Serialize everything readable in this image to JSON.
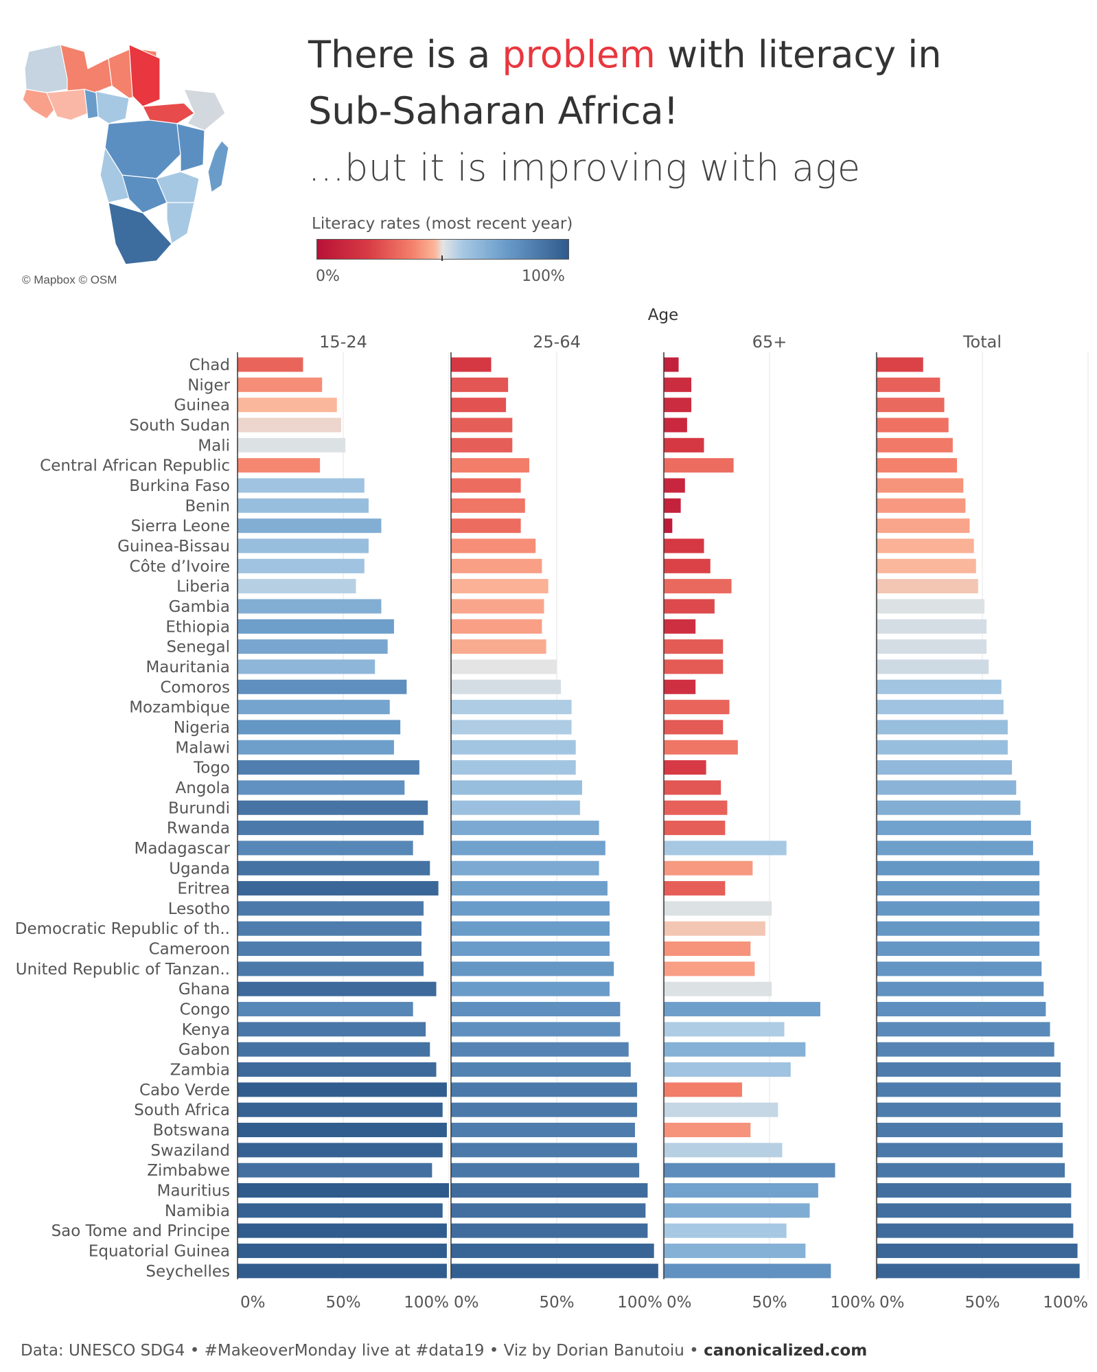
{
  "title": {
    "line1_a": "There is a ",
    "line1_highlight": "problem",
    "line1_b": " with literacy in",
    "line2": "Sub-Saharan Africa!",
    "line3": "...but it is improving with age"
  },
  "legend": {
    "title": "Literacy rates (most recent year)",
    "min": "0%",
    "max": "100%"
  },
  "map_credit": "© Mapbox © OSM",
  "footer": {
    "text": "Data: UNESCO SDG4 • #MakeoverMonday live at #data19 • Viz by Dorian Banutoiu • ",
    "site": "canonicalized.com"
  },
  "chart_data": {
    "type": "bar",
    "orientation": "horizontal",
    "column_header": "Age",
    "xlim": [
      0,
      100
    ],
    "x_ticks": [
      "0%",
      "50%",
      "100%"
    ],
    "categories": [
      "Chad",
      "Niger",
      "Guinea",
      "South Sudan",
      "Mali",
      "Central African Republic",
      "Burkina Faso",
      "Benin",
      "Sierra Leone",
      "Guinea-Bissau",
      "Côte d’Ivoire",
      "Liberia",
      "Gambia",
      "Ethiopia",
      "Senegal",
      "Mauritania",
      "Comoros",
      "Mozambique",
      "Nigeria",
      "Malawi",
      "Togo",
      "Angola",
      "Burundi",
      "Rwanda",
      "Madagascar",
      "Uganda",
      "Eritrea",
      "Lesotho",
      "Democratic Republic of th..",
      "Cameroon",
      "United Republic of Tanzan..",
      "Ghana",
      "Congo",
      "Kenya",
      "Gabon",
      "Zambia",
      "Cabo Verde",
      "South Africa",
      "Botswana",
      "Swaziland",
      "Zimbabwe",
      "Mauritius",
      "Namibia",
      "Sao Tome and Principe",
      "Equatorial Guinea",
      "Seychelles"
    ],
    "series": [
      {
        "name": "15-24",
        "values": [
          31,
          40,
          47,
          49,
          51,
          39,
          60,
          62,
          68,
          62,
          60,
          56,
          68,
          74,
          71,
          65,
          80,
          72,
          77,
          74,
          86,
          79,
          90,
          88,
          83,
          91,
          95,
          88,
          87,
          87,
          88,
          94,
          83,
          89,
          91,
          94,
          99,
          97,
          99,
          97,
          92,
          100,
          97,
          99,
          99,
          99
        ]
      },
      {
        "name": "25-64",
        "values": [
          19,
          27,
          26,
          29,
          29,
          37,
          33,
          35,
          33,
          40,
          43,
          46,
          44,
          43,
          45,
          50,
          52,
          57,
          57,
          59,
          59,
          62,
          61,
          70,
          73,
          70,
          74,
          75,
          75,
          75,
          77,
          75,
          80,
          80,
          84,
          85,
          88,
          88,
          87,
          88,
          89,
          93,
          92,
          93,
          96,
          98
        ]
      },
      {
        "name": "65+",
        "values": [
          7,
          13,
          13,
          11,
          19,
          33,
          10,
          8,
          4,
          19,
          22,
          32,
          24,
          15,
          28,
          28,
          15,
          31,
          28,
          35,
          20,
          27,
          30,
          29,
          58,
          42,
          29,
          51,
          48,
          41,
          43,
          51,
          74,
          57,
          67,
          60,
          37,
          54,
          41,
          56,
          81,
          73,
          69,
          58,
          67,
          79
        ]
      },
      {
        "name": "Total",
        "values": [
          22,
          30,
          32,
          34,
          36,
          38,
          41,
          42,
          44,
          46,
          47,
          48,
          51,
          52,
          52,
          53,
          59,
          60,
          62,
          62,
          64,
          66,
          68,
          73,
          74,
          77,
          77,
          77,
          77,
          77,
          78,
          79,
          80,
          82,
          84,
          87,
          87,
          87,
          88,
          88,
          89,
          92,
          92,
          93,
          95,
          96
        ]
      }
    ]
  }
}
